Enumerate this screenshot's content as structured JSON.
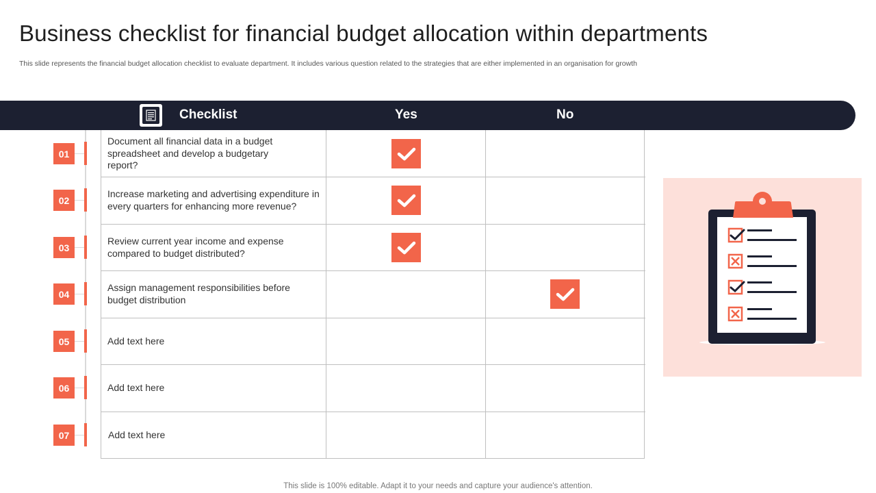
{
  "slide": {
    "title": "Business checklist for financial budget allocation within departments",
    "subtitle": "This slide represents the financial budget allocation checklist to evaluate department. It includes various question related to the strategies that are either implemented in an organisation for growth",
    "footer": "This slide is 100% editable. Adapt it to your needs and capture your audience's attention."
  },
  "header": {
    "icon": "checklist-icon",
    "checklist_label": "Checklist",
    "yes_label": "Yes",
    "no_label": "No"
  },
  "rows": [
    {
      "number": "01",
      "text": "Document all financial data in a budget spreadsheet and develop a budgetary report?",
      "answer": "yes"
    },
    {
      "number": "02",
      "text": "Increase marketing and advertising expenditure in every quarters for enhancing more revenue?",
      "answer": "yes"
    },
    {
      "number": "03",
      "text": "Review current year income and expense compared to budget distributed?",
      "answer": "yes"
    },
    {
      "number": "04",
      "text": "Assign management responsibilities before budget distribution",
      "answer": "no"
    },
    {
      "number": "05",
      "text": "Add text here",
      "answer": ""
    },
    {
      "number": "06",
      "text": "Add text here",
      "answer": ""
    },
    {
      "number": "07",
      "text": "Add text here",
      "answer": ""
    }
  ],
  "illustration": {
    "icon": "clipboard-checklist-icon"
  },
  "colors": {
    "accent": "#f2654a",
    "dark": "#1c2031",
    "illustration_bg": "#fde0da"
  }
}
